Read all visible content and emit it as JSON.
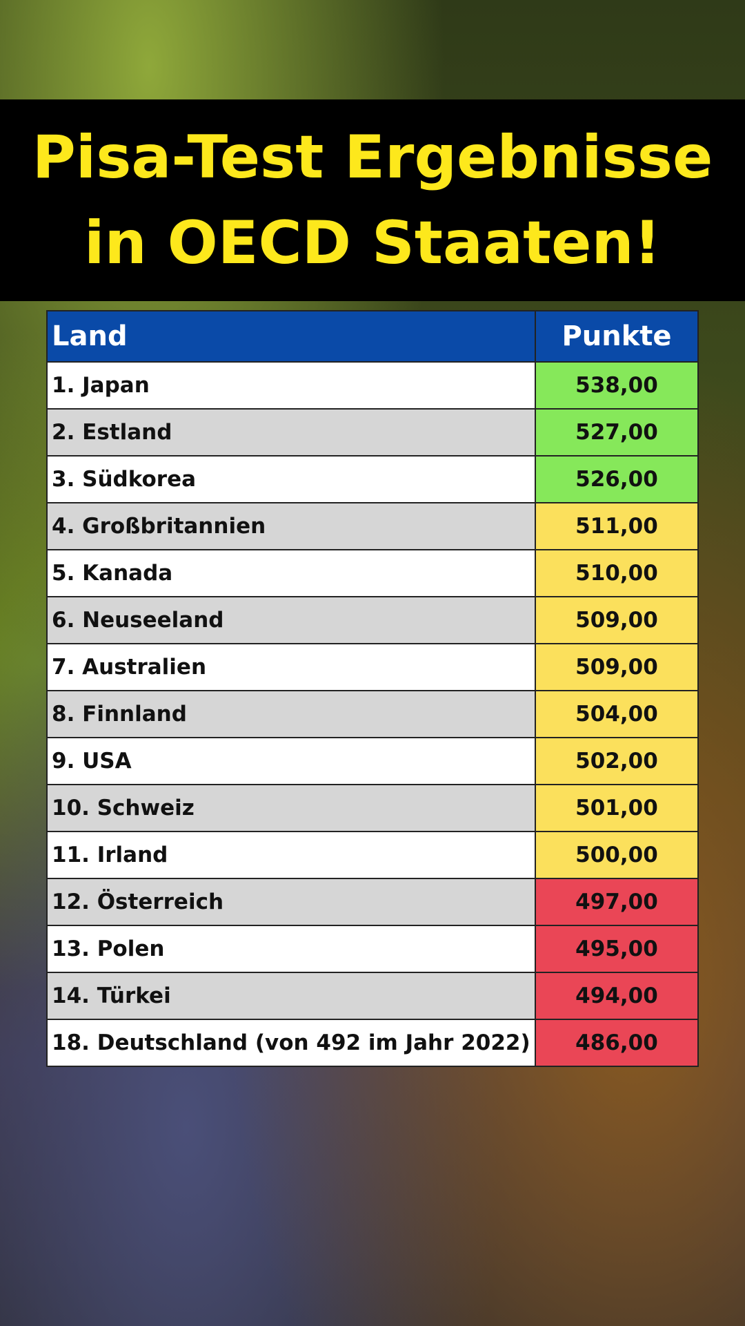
{
  "header": {
    "title": [
      "Pisa-Test Ergebnisse",
      "in OECD Staaten!"
    ]
  },
  "table": {
    "columns": [
      "Land",
      "Punkte"
    ],
    "rows": [
      {
        "land": "1. Japan",
        "punkte": "538,00",
        "color": "#86e85a"
      },
      {
        "land": "2. Estland",
        "punkte": "527,00",
        "color": "#86e85a"
      },
      {
        "land": "3. Südkorea",
        "punkte": "526,00",
        "color": "#86e85a"
      },
      {
        "land": "4. Großbritannien",
        "punkte": "511,00",
        "color": "#fbe05c"
      },
      {
        "land": "5. Kanada",
        "punkte": "510,00",
        "color": "#fbe05c"
      },
      {
        "land": "6. Neuseeland",
        "punkte": "509,00",
        "color": "#fbe05c"
      },
      {
        "land": "7. Australien",
        "punkte": "509,00",
        "color": "#fbe05c"
      },
      {
        "land": "8. Finnland",
        "punkte": "504,00",
        "color": "#fbe05c"
      },
      {
        "land": "9. USA",
        "punkte": "502,00",
        "color": "#fbe05c"
      },
      {
        "land": "10. Schweiz",
        "punkte": "501,00",
        "color": "#fbe05c"
      },
      {
        "land": "11. Irland",
        "punkte": "500,00",
        "color": "#fbe05c"
      },
      {
        "land": "12. Österreich",
        "punkte": "497,00",
        "color": "#ea4656"
      },
      {
        "land": "13. Polen",
        "punkte": "495,00",
        "color": "#ea4656"
      },
      {
        "land": "14. Türkei",
        "punkte": "494,00",
        "color": "#ea4656"
      },
      {
        "land": "18. Deutschland (von 492 im Jahr 2022)",
        "punkte": "486,00",
        "color": "#ea4656"
      }
    ]
  }
}
